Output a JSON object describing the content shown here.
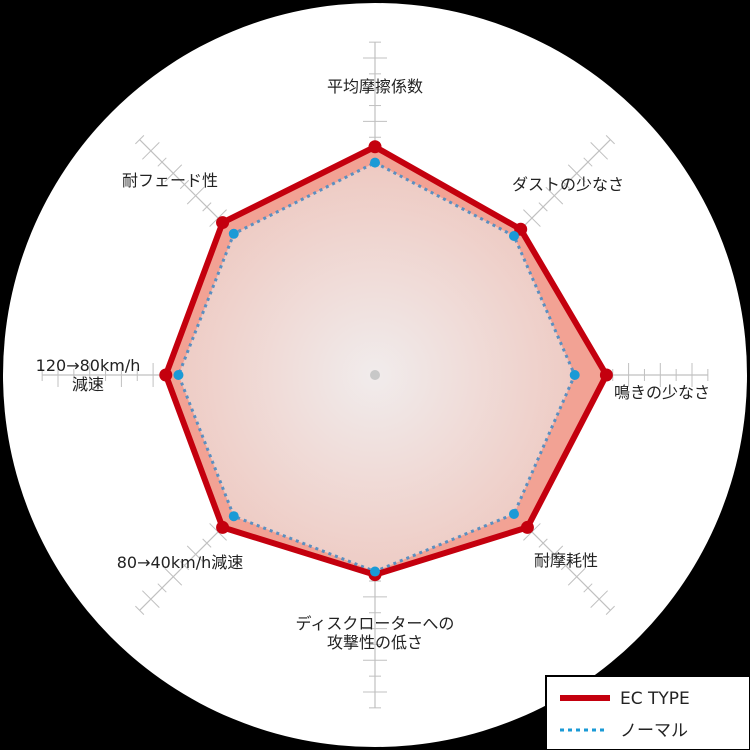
{
  "chart_data": {
    "type": "radar",
    "axes": [
      "平均摩擦係数",
      "ダストの少なさ",
      "鳴きの少なさ",
      "耐摩耗性",
      "ディスクローターへの\n攻撃性の低さ",
      "80→40km/h減速",
      "120→80km/h\n減速",
      "耐フェード性"
    ],
    "range": [
      0,
      10
    ],
    "series": [
      {
        "name": "EC TYPE",
        "values": [
          7.2,
          6.5,
          7.3,
          6.8,
          6.3,
          6.8,
          6.6,
          6.8
        ],
        "color": "#c4000e",
        "style": "solid"
      },
      {
        "name": "ノーマル",
        "values": [
          6.7,
          6.2,
          6.3,
          6.2,
          6.2,
          6.3,
          6.2,
          6.3
        ],
        "color": "#1a9ad6",
        "style": "dotted"
      }
    ],
    "legend_position": "bottom-right",
    "colors": {
      "band_fill": "#f2a294",
      "inner_fill_center": "#f1ecec",
      "inner_fill_edge": "#eec8c0",
      "grid": "#c0c0c0"
    }
  }
}
